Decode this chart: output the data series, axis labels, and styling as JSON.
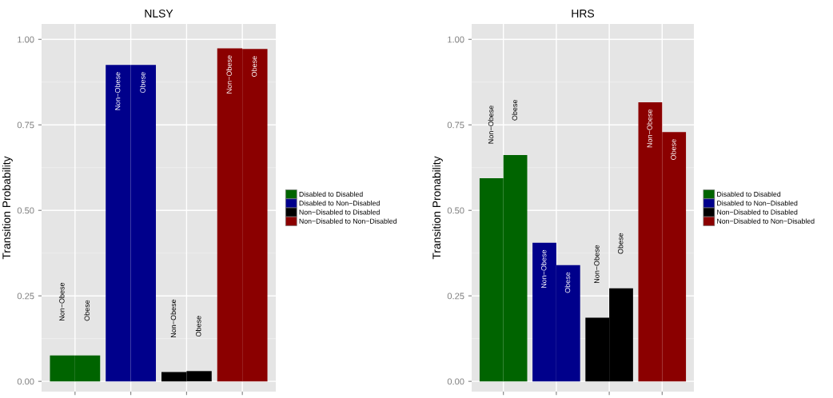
{
  "chart_data": [
    {
      "type": "bar",
      "title": "NLSY",
      "ylabel": "Transition Probability",
      "categories": [
        null,
        null,
        null,
        null,
        null,
        null,
        null,
        null
      ],
      "series": [
        {
          "name": "Disabled to Disabled",
          "color": "#006400",
          "values": [
            0.076,
            0.076,
            null,
            null,
            null,
            null,
            null,
            null
          ]
        },
        {
          "name": "Disabled to Non−Disabled",
          "color": "#00008b",
          "values": [
            null,
            null,
            0.925,
            0.925,
            null,
            null,
            null,
            null
          ]
        },
        {
          "name": "Non−Disabled to Disabled",
          "color": "#000000",
          "values": [
            null,
            null,
            null,
            null,
            0.027,
            0.03,
            null,
            null
          ]
        },
        {
          "name": "Non−Disabled to Non−Disabled",
          "color": "#8b0000",
          "values": [
            null,
            null,
            null,
            null,
            null,
            null,
            0.974,
            0.972
          ]
        }
      ],
      "annotations": [
        "Non−Obese",
        "Obese",
        "Non−Obese",
        "Obese",
        "Non−Obese",
        "Obese",
        "Non−Obese",
        "Obese"
      ],
      "ylim": [
        -0.03,
        1.045
      ],
      "yticks": [
        {
          "value": 0,
          "label": "0.00"
        },
        {
          "value": 0.25,
          "label": "0.25"
        },
        {
          "value": 0.5,
          "label": "0.50"
        },
        {
          "value": 0.75,
          "label": "0.75"
        },
        {
          "value": 1,
          "label": "1.00"
        }
      ],
      "grid": true,
      "legend": "right"
    },
    {
      "type": "bar",
      "title": "HRS",
      "ylabel": "Transition Pronability",
      "categories": [
        null,
        null,
        null,
        null,
        null,
        null,
        null,
        null
      ],
      "series": [
        {
          "name": "Disabled to Disabled",
          "color": "#006400",
          "values": [
            0.594,
            0.662,
            null,
            null,
            null,
            null,
            null,
            null
          ]
        },
        {
          "name": "Disabled to Non−Disabled",
          "color": "#00008b",
          "values": [
            null,
            null,
            0.405,
            0.34,
            null,
            null,
            null,
            null
          ]
        },
        {
          "name": "Non−Disabled to Disabled",
          "color": "#000000",
          "values": [
            null,
            null,
            null,
            null,
            0.186,
            0.272,
            null,
            null
          ]
        },
        {
          "name": "Non−Disabled to Non−Disabled",
          "color": "#8b0000",
          "values": [
            null,
            null,
            null,
            null,
            null,
            null,
            0.816,
            0.729
          ]
        }
      ],
      "annotations": [
        "Non−Obese",
        "Obese",
        "Non−Obese",
        "Obese",
        "Non−Obese",
        "Obese",
        "Non−Obese",
        "Obese"
      ],
      "ylim": [
        -0.03,
        1.045
      ],
      "yticks": [
        {
          "value": 0,
          "label": "0.00"
        },
        {
          "value": 0.25,
          "label": "0.25"
        },
        {
          "value": 0.5,
          "label": "0.50"
        },
        {
          "value": 0.75,
          "label": "0.75"
        },
        {
          "value": 1,
          "label": "1.00"
        }
      ],
      "grid": true,
      "legend": "right"
    }
  ]
}
